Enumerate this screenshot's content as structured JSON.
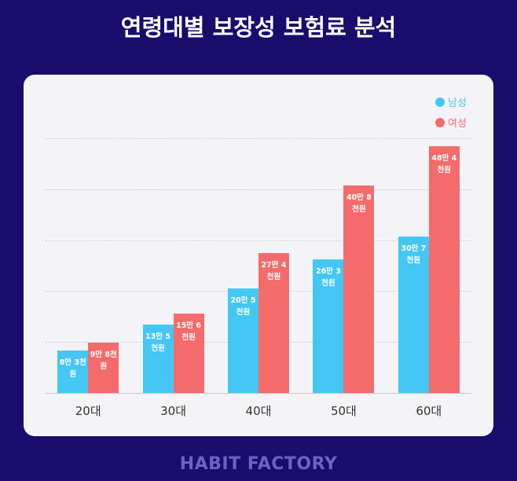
{
  "chart_data": {
    "type": "bar",
    "title": "연령대별 보장성 보험료 분석",
    "categories": [
      "20대",
      "30대",
      "40대",
      "50대",
      "60대"
    ],
    "series": [
      {
        "name": "남성",
        "color": "#44c7f4",
        "values": [
          83000,
          135000,
          205000,
          263000,
          307000
        ],
        "value_labels": [
          "8만 3천원",
          "13만 5천원",
          "20만 5천원",
          "26만 3천원",
          "30만 7천원"
        ]
      },
      {
        "name": "여성",
        "color": "#f56b6c",
        "values": [
          98000,
          156000,
          274000,
          408000,
          484000
        ],
        "value_labels": [
          "9만 8천원",
          "15만 6천원",
          "27만 4천원",
          "40만 8천원",
          "48만 4천원"
        ]
      }
    ],
    "ylim": [
      0,
      500000
    ],
    "grid": true,
    "legend": "top-right"
  },
  "footer": "HABIT FACTORY"
}
